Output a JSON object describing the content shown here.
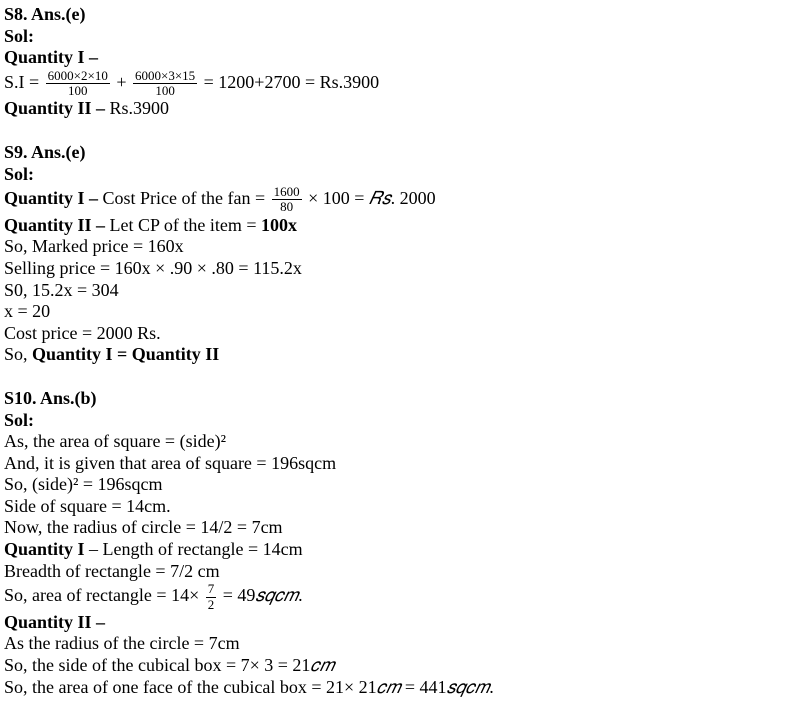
{
  "s8": {
    "heading": "S8. Ans.(e)",
    "sol_label": "Sol:",
    "q1_label": "Quantity I –",
    "si_label": "S.I = ",
    "frac1_num": "6000×2×10",
    "frac1_den": "100",
    "plus": "  + ",
    "frac2_num": "6000×3×15",
    "frac2_den": "100",
    "si_rest": " = 1200+2700 = Rs.3900",
    "q2_label": "Quantity II – ",
    "q2_value": "Rs.3900"
  },
  "s9": {
    "heading": "S9. Ans.(e)",
    "sol_label": "Sol:",
    "q1_label": "Quantity I – ",
    "q1_text1": "Cost Price of the fan = ",
    "frac1_num": "1600",
    "frac1_den": "80",
    "q1_text2": " × 100 = ",
    "q1_rs": "𝑅𝑠",
    "q1_text3": ". 2000",
    "q2_label": "Quantity II – ",
    "q2_text1": "Let CP of the item = ",
    "q2_100x": "100x",
    "line1": "So, Marked price = 160x",
    "line2": "Selling price = 160x × .90 × .80 = 115.2x",
    "line3": "S0, 15.2x = 304",
    "line4": "x = 20",
    "line5": "Cost price = 2000 Rs.",
    "line6a": "So, ",
    "line6b": "Quantity I = Quantity II"
  },
  "s10": {
    "heading": "S10. Ans.(b)",
    "sol_label": "Sol:",
    "line1": "As, the area of square = (side)²",
    "line2": "And, it is given that area of square = 196sqcm",
    "line3": "So, (side)² = 196sqcm",
    "line4": "Side of square = 14cm.",
    "line5": "Now, the radius of circle = 14/2 = 7cm",
    "q1_label": "Quantity I",
    "q1_text": " – Length of rectangle = 14cm",
    "line6": "Breadth of rectangle = 7/2 cm",
    "line7a": "So, area of rectangle = 14× ",
    "frac_num": "7",
    "frac_den": "2",
    "line7b": " = 49",
    "sqcm1": "𝑠𝑞𝑐𝑚",
    "line7c": ".",
    "q2_label": "Quantity II –",
    "line8": "As the radius of the circle = 7cm",
    "line9a": "So, the side of the cubical box = 7× 3 = 21",
    "cm1": "𝑐𝑚",
    "line10a": "So, the area of one face of the cubical box = 21× 21",
    "cm2": "𝑐𝑚",
    "line10b": " = 441",
    "sqcm2": "𝑠𝑞𝑐𝑚",
    "line10c": "."
  }
}
